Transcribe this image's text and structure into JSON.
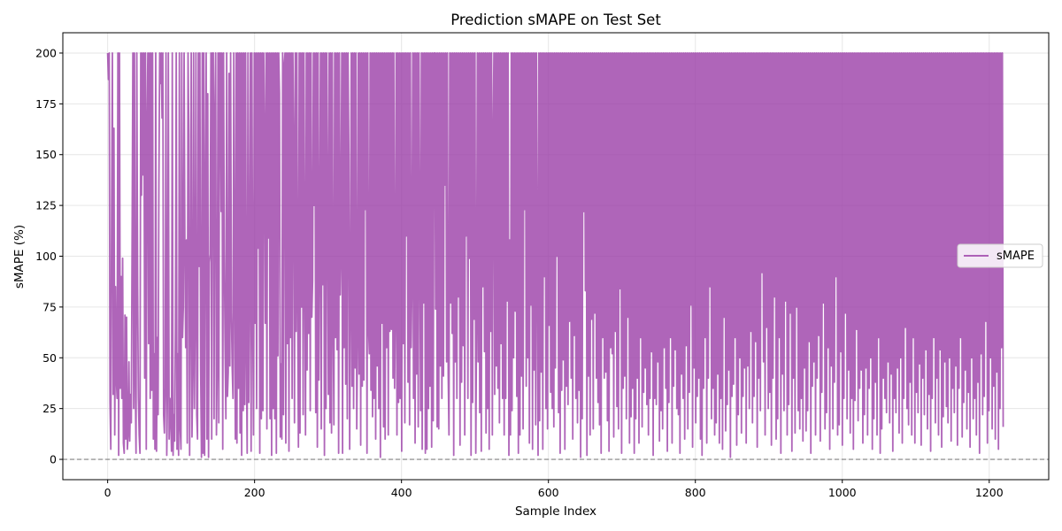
{
  "chart_data": {
    "type": "line",
    "title": "Prediction sMAPE on Test Set",
    "xlabel": "Sample Index",
    "ylabel": "sMAPE (%)",
    "xlim": [
      -61,
      1281
    ],
    "ylim": [
      -10,
      210
    ],
    "xticks": [
      0,
      200,
      400,
      600,
      800,
      1000,
      1200
    ],
    "yticks": [
      0,
      25,
      50,
      75,
      100,
      125,
      150,
      175,
      200
    ],
    "grid": true,
    "legend": {
      "position": "center-right",
      "entries": [
        "sMAPE"
      ]
    },
    "reference_line": {
      "y": 0,
      "style": "dashed",
      "color": "#808080"
    },
    "series": [
      {
        "name": "sMAPE",
        "color": "#9b3fa8",
        "x_start": 0,
        "x_step": 1,
        "n_points": 1220,
        "values": [
          200,
          187,
          200,
          28,
          5,
          120,
          200,
          32,
          163,
          12,
          85,
          40,
          30,
          200,
          2,
          200,
          35,
          90,
          30,
          99,
          8,
          3,
          71,
          10,
          70,
          5,
          12,
          48,
          9,
          32,
          18,
          105,
          200,
          25,
          200,
          40,
          3,
          200,
          86,
          30,
          12,
          3,
          200,
          130,
          200,
          140,
          200,
          40,
          200,
          5,
          165,
          200,
          57,
          200,
          30,
          200,
          34,
          200,
          10,
          52,
          5,
          200,
          4,
          60,
          22,
          135,
          200,
          185,
          200,
          168,
          200,
          22,
          13,
          35,
          200,
          2,
          36,
          200,
          10,
          30,
          20,
          4,
          200,
          2,
          22,
          9,
          65,
          200,
          5,
          52,
          2,
          200,
          15,
          5,
          200,
          60,
          75,
          200,
          105,
          55,
          108,
          8,
          200,
          160,
          2,
          75,
          200,
          11,
          46,
          200,
          25,
          70,
          200,
          22,
          10,
          200,
          95,
          200,
          45,
          1,
          200,
          3,
          200,
          2,
          123,
          200,
          10,
          180,
          1,
          97,
          101,
          200,
          10,
          200,
          200,
          20,
          170,
          200,
          12,
          46,
          200,
          18,
          200,
          200,
          122,
          200,
          5,
          200,
          103,
          54,
          20,
          200,
          31,
          43,
          190,
          46,
          200,
          72,
          45,
          30,
          200,
          90,
          10,
          200,
          8,
          200,
          35,
          200,
          13,
          200,
          2,
          200,
          24,
          200,
          27,
          200,
          55,
          3,
          200,
          28,
          90,
          200,
          4,
          200,
          74,
          12,
          200,
          67,
          200,
          25,
          200,
          104,
          200,
          3,
          200,
          20,
          200,
          24,
          200,
          160,
          67,
          200,
          15,
          200,
          109,
          200,
          20,
          200,
          2,
          200,
          25,
          200,
          20,
          200,
          3,
          200,
          51,
          200,
          180,
          11,
          47,
          10,
          200,
          22,
          195,
          200,
          8,
          200,
          57,
          200,
          4,
          200,
          60,
          200,
          30,
          200,
          155,
          18,
          200,
          63,
          200,
          80,
          6,
          200,
          13,
          200,
          75,
          200,
          22,
          200,
          100,
          12,
          200,
          44,
          200,
          62,
          200,
          24,
          200,
          70,
          88,
          200,
          125,
          200,
          23,
          200,
          6,
          200,
          39,
          110,
          200,
          15,
          200,
          86,
          200,
          2,
          200,
          25,
          200,
          125,
          32,
          200,
          18,
          200,
          13,
          200,
          70,
          17,
          200,
          60,
          200,
          54,
          200,
          3,
          200,
          81,
          106,
          200,
          3,
          200,
          55,
          200,
          37,
          200,
          20,
          200,
          148,
          5,
          78,
          200,
          36,
          200,
          25,
          200,
          45,
          200,
          15,
          60,
          200,
          42,
          200,
          7,
          200,
          36,
          200,
          39,
          200,
          123,
          200,
          3,
          200,
          65,
          52,
          200,
          34,
          200,
          21,
          200,
          30,
          200,
          10,
          200,
          46,
          200,
          25,
          200,
          1,
          200,
          67,
          200,
          16,
          200,
          10,
          200,
          55,
          200,
          12,
          200,
          63,
          200,
          64,
          200,
          40,
          200,
          35,
          75,
          200,
          12,
          200,
          28,
          200,
          30,
          200,
          4,
          200,
          57,
          200,
          18,
          200,
          110,
          200,
          38,
          200,
          17,
          200,
          55,
          90,
          200,
          30,
          200,
          8,
          200,
          42,
          200,
          16,
          200,
          110,
          24,
          200,
          5,
          200,
          77,
          200,
          3,
          200,
          5,
          200,
          25,
          200,
          36,
          200,
          6,
          200,
          19,
          200,
          200,
          74,
          200,
          16,
          200,
          15,
          200,
          46,
          200,
          30,
          200,
          41,
          200,
          135,
          200,
          48,
          200,
          42,
          12,
          200,
          77,
          200,
          62,
          200,
          2,
          200,
          48,
          200,
          30,
          200,
          80,
          200,
          7,
          200,
          38,
          200,
          56,
          200,
          12,
          200,
          110,
          200,
          30,
          200,
          99,
          200,
          2,
          200,
          28,
          200,
          69,
          200,
          3,
          70,
          200,
          48,
          200,
          23,
          200,
          4,
          200,
          85,
          200,
          53,
          200,
          13,
          200,
          25,
          200,
          5,
          200,
          63,
          200,
          12,
          160,
          200,
          32,
          200,
          46,
          200,
          35,
          200,
          18,
          200,
          57,
          200,
          30,
          200,
          12,
          200,
          30,
          200,
          78,
          200,
          2,
          108,
          12,
          200,
          24,
          200,
          50,
          200,
          73,
          200,
          31,
          200,
          3,
          200,
          12,
          200,
          41,
          200,
          15,
          200,
          123,
          200,
          36,
          200,
          50,
          200,
          8,
          200,
          76,
          200,
          5,
          200,
          44,
          200,
          17,
          200,
          96,
          2,
          200,
          19,
          200,
          43,
          200,
          5,
          200,
          90,
          200,
          25,
          200,
          15,
          200,
          66,
          200,
          33,
          200,
          25,
          200,
          16,
          200,
          45,
          200,
          100,
          200,
          23,
          200,
          3,
          200,
          34,
          200,
          49,
          200,
          5,
          200,
          36,
          200,
          27,
          200,
          68,
          200,
          40,
          200,
          10,
          200,
          61,
          200,
          30,
          200,
          18,
          200,
          34,
          200,
          1,
          200,
          20,
          200,
          122,
          200,
          83,
          200,
          2,
          200,
          41,
          200,
          12,
          200,
          69,
          200,
          15,
          200,
          72,
          200,
          40,
          200,
          28,
          200,
          17,
          200,
          3,
          200,
          60,
          200,
          40,
          200,
          43,
          200,
          19,
          200,
          4,
          200,
          55,
          200,
          52,
          200,
          11,
          200,
          63,
          200,
          26,
          200,
          15,
          200,
          84,
          200,
          3,
          200,
          35,
          200,
          41,
          200,
          20,
          200,
          70,
          200,
          8,
          200,
          21,
          200,
          35,
          200,
          3,
          200,
          20,
          200,
          40,
          200,
          8,
          200,
          60,
          200,
          16,
          200,
          33,
          200,
          45,
          200,
          27,
          200,
          12,
          200,
          30,
          200,
          53,
          200,
          2,
          200,
          30,
          200,
          27,
          200,
          48,
          200,
          9,
          200,
          24,
          200,
          15,
          200,
          55,
          200,
          35,
          200,
          4,
          200,
          28,
          200,
          60,
          200,
          8,
          200,
          36,
          200,
          54,
          200,
          25,
          200,
          22,
          200,
          3,
          200,
          42,
          200,
          30,
          200,
          10,
          200,
          56,
          200,
          15,
          200,
          33,
          200,
          76,
          200,
          6,
          200,
          45,
          200,
          18,
          200,
          31,
          200,
          40,
          200,
          10,
          200,
          2,
          200,
          35,
          200,
          60,
          200,
          8,
          200,
          40,
          200,
          85,
          200,
          20,
          200,
          35,
          200,
          12,
          200,
          18,
          200,
          42,
          200,
          8,
          200,
          30,
          200,
          5,
          200,
          70,
          200,
          14,
          200,
          27,
          200,
          44,
          200,
          1,
          200,
          31,
          200,
          37,
          200,
          60,
          200,
          7,
          200,
          22,
          200,
          50,
          200,
          13,
          200,
          31,
          200,
          45,
          200,
          8,
          200,
          46,
          200,
          25,
          200,
          63,
          200,
          18,
          200,
          31,
          200,
          58,
          200,
          6,
          200,
          40,
          200,
          24,
          200,
          92,
          200,
          48,
          200,
          12,
          200,
          65,
          200,
          25,
          200,
          33,
          200,
          7,
          200,
          40,
          200,
          80,
          200,
          10,
          200,
          20,
          200,
          60,
          200,
          3,
          200,
          42,
          200,
          24,
          200,
          78,
          200,
          12,
          200,
          27,
          200,
          72,
          200,
          4,
          200,
          40,
          200,
          13,
          200,
          75,
          200,
          24,
          200,
          15,
          200,
          30,
          200,
          9,
          200,
          45,
          200,
          14,
          200,
          24,
          200,
          58,
          200,
          3,
          200,
          36,
          200,
          48,
          200,
          12,
          200,
          40,
          200,
          61,
          200,
          9,
          200,
          33,
          200,
          77,
          200,
          15,
          200,
          23,
          200,
          55,
          200,
          5,
          200,
          46,
          200,
          15,
          200,
          38,
          200,
          90,
          200,
          12,
          200,
          17,
          200,
          53,
          200,
          7,
          200,
          30,
          200,
          72,
          200,
          20,
          200,
          44,
          200,
          13,
          200,
          30,
          200,
          5,
          200,
          29,
          200,
          64,
          200,
          19,
          200,
          35,
          200,
          44,
          200,
          8,
          200,
          22,
          200,
          45,
          200,
          12,
          200,
          35,
          200,
          50,
          200,
          5,
          200,
          20,
          200,
          38,
          200,
          12,
          200,
          60,
          200,
          3,
          200,
          15,
          200,
          40,
          200,
          30,
          200,
          23,
          200,
          48,
          200,
          18,
          200,
          42,
          200,
          4,
          200,
          30,
          200,
          23,
          200,
          45,
          200,
          13,
          200,
          50,
          200,
          8,
          200,
          30,
          200,
          65,
          200,
          25,
          200,
          17,
          200,
          38,
          200,
          12,
          200,
          60,
          200,
          8,
          200,
          33,
          200,
          23,
          200,
          47,
          200,
          7,
          200,
          40,
          200,
          22,
          200,
          54,
          200,
          15,
          200,
          32,
          200,
          4,
          200,
          30,
          200,
          60,
          200,
          18,
          200,
          40,
          200,
          12,
          200,
          54,
          200,
          6,
          200,
          21,
          200,
          48,
          200,
          26,
          200,
          18,
          200,
          50,
          200,
          9,
          200,
          35,
          200,
          23,
          200,
          46,
          200,
          7,
          200,
          35,
          200,
          60,
          200,
          11,
          200,
          28,
          200,
          44,
          200,
          15,
          200,
          33,
          200,
          6,
          200,
          50,
          200,
          20,
          200,
          30,
          200,
          12,
          200,
          38,
          200,
          3,
          200,
          52,
          200,
          22,
          200,
          31,
          200,
          68,
          200,
          8,
          200,
          24,
          200,
          50,
          200,
          15,
          200,
          36,
          200,
          10,
          200,
          43,
          200,
          5,
          200,
          25,
          200,
          55,
          200,
          16
        ]
      }
    ]
  }
}
